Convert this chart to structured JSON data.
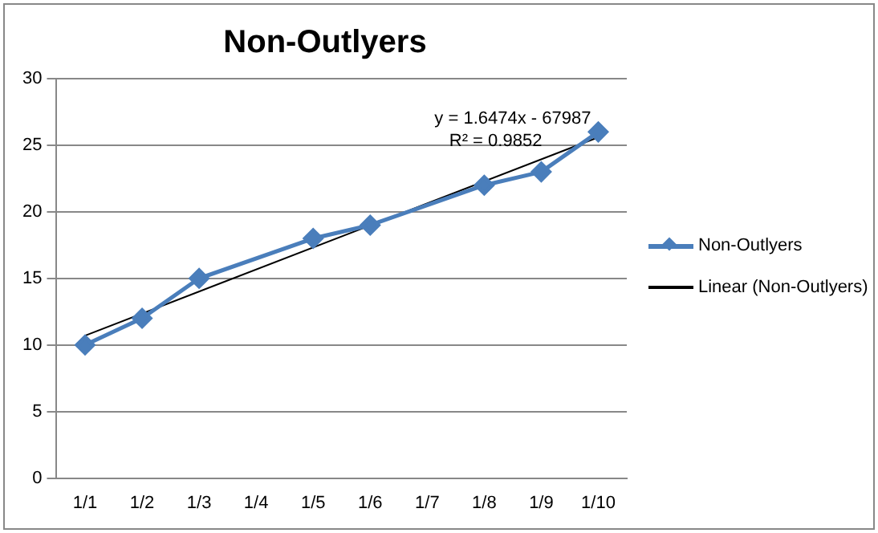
{
  "chart_data": {
    "type": "line",
    "title": "Non-Outlyers",
    "categories": [
      "1/1",
      "1/2",
      "1/3",
      "1/4",
      "1/5",
      "1/6",
      "1/7",
      "1/8",
      "1/9",
      "1/10"
    ],
    "series": [
      {
        "name": "Non-Outlyers",
        "color": "#4a7ebb",
        "values": [
          10,
          12,
          15,
          null,
          18,
          19,
          null,
          22,
          23,
          26
        ],
        "marker": "diamond"
      },
      {
        "name": "Linear (Non-Outlyers)",
        "color": "#000000",
        "type": "line",
        "values": [
          10.7,
          null,
          null,
          null,
          null,
          null,
          null,
          null,
          null,
          25.6
        ],
        "marker": "none"
      }
    ],
    "annotations": [
      "y = 1.6474x - 67987",
      "R² = 0.9852"
    ],
    "ylim": [
      0,
      30
    ],
    "yticks": [
      0,
      5,
      10,
      15,
      20,
      25,
      30
    ],
    "grid": "y",
    "legend": "right"
  }
}
